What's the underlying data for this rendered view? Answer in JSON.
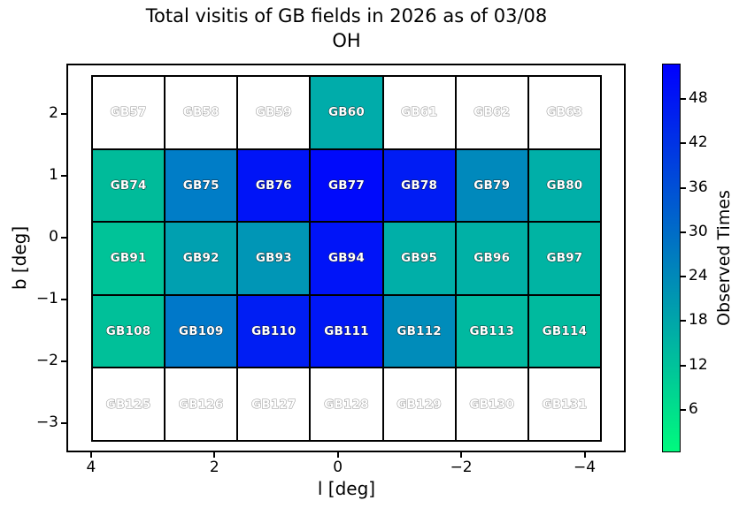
{
  "title": {
    "line1": "Total visitis of GB fields in 2026 as of 03/08",
    "line2": "OH"
  },
  "chart_data": {
    "type": "heatmap",
    "title": "Total visitis of GB fields in 2026 as of 03/08 OH",
    "xlabel": "l [deg]",
    "ylabel": "b [deg]",
    "x_axis_reversed": true,
    "x_ticks": [
      {
        "label": "4",
        "value": 4
      },
      {
        "label": "2",
        "value": 2
      },
      {
        "label": "0",
        "value": 0
      },
      {
        "label": "−2",
        "value": -2
      },
      {
        "label": "−4",
        "value": -4
      }
    ],
    "y_ticks": [
      {
        "label": "2",
        "value": 2
      },
      {
        "label": "1",
        "value": 1
      },
      {
        "label": "0",
        "value": 0
      },
      {
        "label": "−1",
        "value": -1
      },
      {
        "label": "−2",
        "value": -2
      },
      {
        "label": "−3",
        "value": -3
      }
    ],
    "colorbar": {
      "label": "Observed Times",
      "ticks": [
        6,
        12,
        18,
        24,
        30,
        36,
        42,
        48
      ],
      "vmin": 0,
      "vmax": 52,
      "colormap": "winter_r",
      "color_low": "#00fa7e",
      "color_high": "#0000ff"
    },
    "grid_on": false,
    "note": "values estimated from cell colors; white cells have no observations",
    "rows": [
      [
        {
          "label": "GB57",
          "value": null,
          "color": null
        },
        {
          "label": "GB58",
          "value": null,
          "color": null
        },
        {
          "label": "GB59",
          "value": null,
          "color": null
        },
        {
          "label": "GB60",
          "value": 17,
          "color": "#00acaa"
        },
        {
          "label": "GB61",
          "value": null,
          "color": null
        },
        {
          "label": "GB62",
          "value": null,
          "color": null
        },
        {
          "label": "GB63",
          "value": null,
          "color": null
        }
      ],
      [
        {
          "label": "GB74",
          "value": 14,
          "color": "#00bb9a"
        },
        {
          "label": "GB75",
          "value": 27,
          "color": "#007dc7"
        },
        {
          "label": "GB76",
          "value": 48,
          "color": "#0014f7"
        },
        {
          "label": "GB77",
          "value": 50,
          "color": "#000afb"
        },
        {
          "label": "GB78",
          "value": 46,
          "color": "#001cf4"
        },
        {
          "label": "GB79",
          "value": 24,
          "color": "#0089bc"
        },
        {
          "label": "GB80",
          "value": 16,
          "color": "#00afa8"
        }
      ],
      [
        {
          "label": "GB91",
          "value": 12,
          "color": "#00c398"
        },
        {
          "label": "GB92",
          "value": 19,
          "color": "#00a0b0"
        },
        {
          "label": "GB93",
          "value": 21,
          "color": "#0096b6"
        },
        {
          "label": "GB94",
          "value": 48,
          "color": "#0014f8"
        },
        {
          "label": "GB95",
          "value": 16,
          "color": "#00afa8"
        },
        {
          "label": "GB96",
          "value": 16,
          "color": "#00b1a6"
        },
        {
          "label": "GB97",
          "value": 15,
          "color": "#00b4a3"
        }
      ],
      [
        {
          "label": "GB108",
          "value": 13,
          "color": "#00c099"
        },
        {
          "label": "GB109",
          "value": 28,
          "color": "#0078c9"
        },
        {
          "label": "GB110",
          "value": 46,
          "color": "#001ef3"
        },
        {
          "label": "GB111",
          "value": 47,
          "color": "#0017f6"
        },
        {
          "label": "GB112",
          "value": 23,
          "color": "#008cba"
        },
        {
          "label": "GB113",
          "value": 14,
          "color": "#00b9a0"
        },
        {
          "label": "GB114",
          "value": 14,
          "color": "#00ba9e"
        }
      ],
      [
        {
          "label": "GB125",
          "value": null,
          "color": null
        },
        {
          "label": "GB126",
          "value": null,
          "color": null
        },
        {
          "label": "GB127",
          "value": null,
          "color": null
        },
        {
          "label": "GB128",
          "value": null,
          "color": null
        },
        {
          "label": "GB129",
          "value": null,
          "color": null
        },
        {
          "label": "GB130",
          "value": null,
          "color": null
        },
        {
          "label": "GB131",
          "value": null,
          "color": null
        }
      ]
    ]
  }
}
